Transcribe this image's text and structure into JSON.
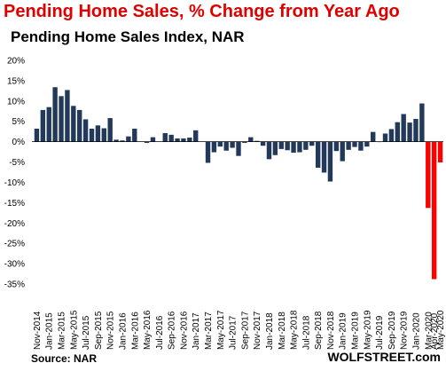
{
  "header": {
    "title": "Pending Home Sales, % Change from Year Ago",
    "subtitle": "Pending Home Sales Index, NAR"
  },
  "footer": {
    "source": "Source: NAR",
    "brand": "WOLFSTREET.com"
  },
  "colors": {
    "bar": "#22395a",
    "highlight": "#ff0000",
    "title": "#e00000",
    "axis": "#000000",
    "grid": "#d9d9d9"
  },
  "chart_data": {
    "type": "bar",
    "title": "Pending Home Sales, % Change from Year Ago",
    "subtitle": "Pending Home Sales Index, NAR",
    "xlabel": "",
    "ylabel": "",
    "ylim": [
      -35,
      20
    ],
    "yticks": [
      20,
      15,
      10,
      5,
      0,
      -5,
      -10,
      -15,
      -20,
      -25,
      -30,
      -35
    ],
    "ytick_labels": [
      "20%",
      "15%",
      "10%",
      "5%",
      "0%",
      "-5%",
      "-10%",
      "-15%",
      "-20%",
      "-25%",
      "-30%",
      "-35%"
    ],
    "grid": false,
    "legend": "none",
    "categories": [
      "Nov-2014",
      "Dec-2014",
      "Jan-2015",
      "Feb-2015",
      "Mar-2015",
      "Apr-2015",
      "May-2015",
      "Jun-2015",
      "Jul-2015",
      "Aug-2015",
      "Sep-2015",
      "Oct-2015",
      "Nov-2015",
      "Dec-2015",
      "Jan-2016",
      "Feb-2016",
      "Mar-2016",
      "Apr-2016",
      "May-2016",
      "Jun-2016",
      "Jul-2016",
      "Aug-2016",
      "Sep-2016",
      "Oct-2016",
      "Nov-2016",
      "Dec-2016",
      "Jan-2017",
      "Feb-2017",
      "Mar-2017",
      "Apr-2017",
      "May-2017",
      "Jun-2017",
      "Jul-2017",
      "Aug-2017",
      "Sep-2017",
      "Oct-2017",
      "Nov-2017",
      "Dec-2017",
      "Jan-2018",
      "Feb-2018",
      "Mar-2018",
      "Apr-2018",
      "May-2018",
      "Jun-2018",
      "Jul-2018",
      "Aug-2018",
      "Sep-2018",
      "Oct-2018",
      "Nov-2018",
      "Dec-2018",
      "Jan-2019",
      "Feb-2019",
      "Mar-2019",
      "Apr-2019",
      "May-2019",
      "Jun-2019",
      "Jul-2019",
      "Aug-2019",
      "Sep-2019",
      "Oct-2019",
      "Nov-2019",
      "Dec-2019",
      "Jan-2020",
      "Feb-2020",
      "Mar-2020",
      "Apr-2020",
      "May-2020"
    ],
    "tick_labels": [
      "Nov-2014",
      "Jan-2015",
      "Mar-2015",
      "May-2015",
      "Jul-2015",
      "Sep-2015",
      "Nov-2015",
      "Jan-2016",
      "Mar-2016",
      "May-2016",
      "Jul-2016",
      "Sep-2016",
      "Nov-2016",
      "Jan-2017",
      "Mar-2017",
      "May-2017",
      "Jul-2017",
      "Sep-2017",
      "Nov-2017",
      "Jan-2018",
      "Mar-2018",
      "May-2018",
      "Jul-2018",
      "Sep-2018",
      "Nov-2018",
      "Jan-2019",
      "Mar-2019",
      "May-2019",
      "Jul-2019",
      "Sep-2019",
      "Nov-2019",
      "Jan-2020",
      "Mar-2020",
      "Apr-2020",
      "May-2020"
    ],
    "values": [
      3.2,
      7.8,
      8.5,
      13.4,
      11.2,
      12.7,
      8.8,
      7.8,
      5.5,
      3.2,
      4.0,
      3.3,
      5.8,
      0.5,
      0.3,
      1.3,
      3.2,
      0.0,
      -0.3,
      1.1,
      0.0,
      2.1,
      1.7,
      0.8,
      0.8,
      1.0,
      2.8,
      0.0,
      -5.2,
      -2.6,
      -1.2,
      -2.2,
      -1.5,
      -3.5,
      -0.3,
      1.1,
      0.2,
      -1.0,
      -4.3,
      -3.3,
      -1.8,
      -2.1,
      -2.7,
      -2.6,
      -2.0,
      -1.0,
      -6.4,
      -7.6,
      -9.8,
      -2.3,
      -4.8,
      -2.0,
      -1.3,
      -2.2,
      -1.2,
      2.4,
      -0.1,
      2.0,
      3.1,
      4.8,
      6.8,
      4.7,
      5.6,
      9.4,
      -16.3,
      -33.8,
      -5.1
    ],
    "highlight_last": 3
  }
}
